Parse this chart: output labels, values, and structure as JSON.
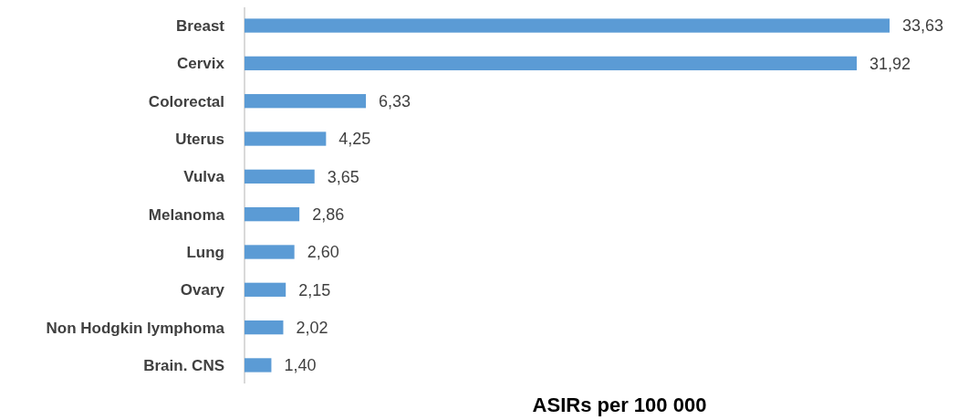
{
  "chart_data": {
    "type": "bar",
    "orientation": "horizontal",
    "categories": [
      "Breast",
      "Cervix",
      "Colorectal",
      "Uterus",
      "Vulva",
      "Melanoma",
      "Lung",
      "Ovary",
      "Non Hodgkin lymphoma",
      "Brain. CNS"
    ],
    "values": [
      33.63,
      31.92,
      6.33,
      4.25,
      3.65,
      2.86,
      2.6,
      2.15,
      2.02,
      1.4
    ],
    "value_labels": [
      "33,63",
      "31,92",
      "6,33",
      "4,25",
      "3,65",
      "2,86",
      "2,60",
      "2,15",
      "2,02",
      "1,40"
    ],
    "color": "#5b9bd5",
    "xlabel": "ASIRs per 100 000"
  }
}
